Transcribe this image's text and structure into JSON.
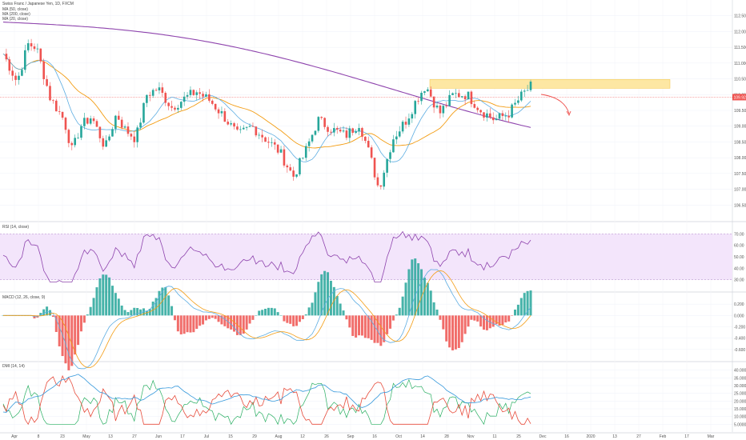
{
  "chart_data": [
    {
      "pane": "price",
      "type": "candlestick",
      "title": "Swiss Franc / Japanese Yen, 1D, FXCM",
      "indicators": [
        "MA (50, close)",
        "MA (200, close)",
        "MA (20, close)"
      ],
      "ylim": [
        106.0,
        113.0
      ],
      "y_ticks": [
        "113.000",
        "112.500",
        "112.000",
        "111.500",
        "111.000",
        "110.500",
        "110.000",
        "109.500",
        "109.000",
        "108.500",
        "108.000",
        "107.500",
        "107.000",
        "106.500",
        "106.000"
      ],
      "current_price": {
        "label": "109.920",
        "value": 109.92
      },
      "resistance_zone": [
        110.2,
        110.48
      ],
      "annotation": "bearish projection arrow",
      "colors": {
        "up": "#26a69a",
        "down": "#ef5350",
        "ma200": "#8e44ad",
        "ma50": "#f39c12",
        "ma20": "#5dade2",
        "zone": "#fde7a3"
      }
    },
    {
      "pane": "rsi",
      "type": "line",
      "title": "RSI (14, close)",
      "ylim": [
        20,
        80
      ],
      "y_ticks": [
        "70.00",
        "60.00",
        "50.00",
        "40.00",
        "30.00",
        "20.00"
      ],
      "band": [
        30,
        70
      ],
      "colors": {
        "line": "#8e44ad",
        "band": "#f3e5fb"
      }
    },
    {
      "pane": "macd",
      "type": "bar",
      "title": "MACD (12, 26, close, 9)",
      "ylim": [
        -0.8,
        0.4
      ],
      "y_ticks": [
        "0.400",
        "0.200",
        "0.000",
        "-0.200",
        "-0.400",
        "-0.600",
        "-0.800"
      ],
      "colors": {
        "hist_up": "#26a69a",
        "hist_down": "#ef5350",
        "macd": "#5dade2",
        "signal": "#f39c12"
      }
    },
    {
      "pane": "dmi",
      "type": "line",
      "title": "DMI (14, 14)",
      "ylim": [
        0,
        45
      ],
      "y_ticks": [
        "45.0000",
        "40.0000",
        "35.0000",
        "30.0000",
        "25.0000",
        "20.0000",
        "15.0000",
        "10.0000",
        "5.0000"
      ],
      "colors": {
        "plus_di": "#27ae60",
        "minus_di": "#e74c3c",
        "adx": "#3498db"
      }
    }
  ],
  "x_axis": {
    "labels": [
      "Apr",
      "8",
      "23",
      "May",
      "13",
      "27",
      "Jun",
      "17",
      "Jul",
      "15",
      "29",
      "Aug",
      "12",
      "26",
      "Sep",
      "16",
      "Oct",
      "14",
      "28",
      "Nov",
      "11",
      "25",
      "Dec",
      "16",
      "2020",
      "13",
      "27",
      "Feb",
      "17",
      "Mar"
    ]
  }
}
